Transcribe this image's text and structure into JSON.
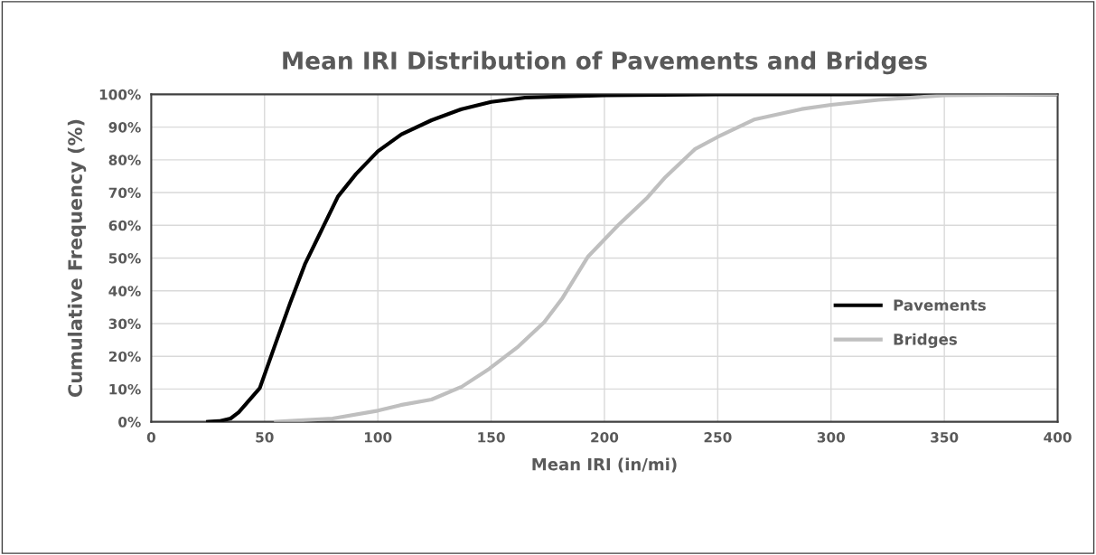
{
  "chart_data": {
    "type": "line",
    "title": "Mean IRI Distribution of Pavements and Bridges",
    "xlabel": "Mean IRI (in/mi)",
    "ylabel": "Cumulative Frequency (%)",
    "xlim": [
      0,
      400
    ],
    "xticks": [
      0,
      50,
      100,
      150,
      200,
      250,
      300,
      350,
      400
    ],
    "ylim": [
      0,
      100
    ],
    "yticks": [
      {
        "value": 0,
        "label": "0%"
      },
      {
        "value": 10,
        "label": "10%"
      },
      {
        "value": 20,
        "label": "20%"
      },
      {
        "value": 30,
        "label": "30%"
      },
      {
        "value": 40,
        "label": "40%"
      },
      {
        "value": 50,
        "label": "50%"
      },
      {
        "value": 60,
        "label": "60%"
      },
      {
        "value": 70,
        "label": "70%"
      },
      {
        "value": 80,
        "label": "80%"
      },
      {
        "value": 90,
        "label": "90%"
      },
      {
        "value": 100,
        "label": "100%"
      }
    ],
    "grid": true,
    "legend": "right",
    "marker": "none",
    "line_style": "solid",
    "series": [
      {
        "name": "Pavements",
        "color": "#000000",
        "x": [
          25,
          30,
          35,
          38.6,
          47.9,
          54.5,
          61.2,
          67.8,
          74.5,
          82.4,
          90.4,
          100,
          110.4,
          123.7,
          137,
          150,
          165,
          200,
          250,
          300,
          400
        ],
        "values": [
          0,
          0.2,
          1,
          2.9,
          10.3,
          23.2,
          36.1,
          48.1,
          57.6,
          68.8,
          75.7,
          82.6,
          87.8,
          92.1,
          95.5,
          97.7,
          99,
          99.7,
          100,
          100,
          100
        ]
      },
      {
        "name": "Bridges",
        "color": "#bfbfbf",
        "x": [
          55,
          60,
          80,
          100,
          110,
          123.7,
          137,
          149.2,
          162,
          173.4,
          181.5,
          192.8,
          206,
          219,
          227,
          240,
          250,
          266,
          287,
          300,
          321,
          350,
          400
        ],
        "values": [
          0,
          0.2,
          1,
          3.4,
          5.1,
          6.8,
          10.7,
          16.2,
          23,
          30.4,
          37.8,
          50.5,
          60,
          68.5,
          74.8,
          83.3,
          87,
          92.3,
          95.5,
          96.8,
          98.3,
          99.7,
          100
        ]
      }
    ]
  }
}
